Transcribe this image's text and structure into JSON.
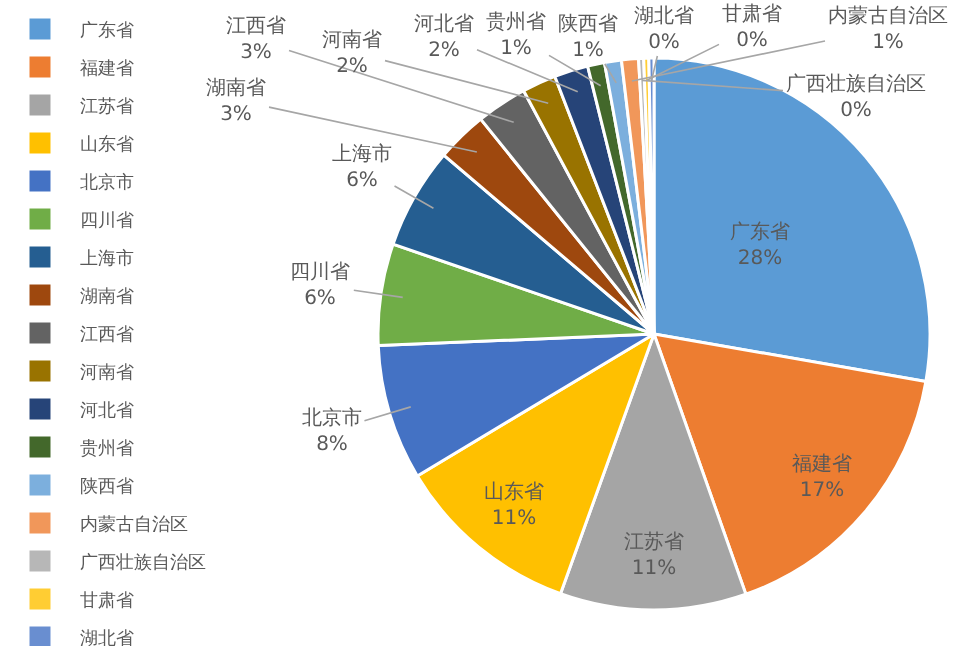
{
  "chart_data": {
    "type": "pie",
    "categories": [
      "广东省",
      "福建省",
      "江苏省",
      "山东省",
      "北京市",
      "四川省",
      "上海市",
      "湖南省",
      "江西省",
      "河南省",
      "河北省",
      "贵州省",
      "陕西省",
      "内蒙古自治区",
      "广西壮族自治区",
      "甘肃省",
      "湖北省"
    ],
    "values": [
      28,
      17,
      11,
      11,
      8,
      6,
      6,
      3,
      3,
      2,
      2,
      1,
      1,
      1,
      0.3,
      0.3,
      0.3
    ],
    "value_labels": [
      "28%",
      "17%",
      "11%",
      "11%",
      "8%",
      "6%",
      "6%",
      "3%",
      "3%",
      "2%",
      "2%",
      "1%",
      "1%",
      "1%",
      "0%",
      "0%",
      "0%"
    ],
    "colors": [
      "#5b9bd5",
      "#ed7d31",
      "#a5a5a5",
      "#ffc000",
      "#4472c4",
      "#70ad47",
      "#255e91",
      "#9e480e",
      "#636363",
      "#997300",
      "#264478",
      "#43682b",
      "#7cafdd",
      "#f1975a",
      "#b7b7b7",
      "#ffcd33",
      "#698ed0"
    ],
    "legend": "left"
  }
}
